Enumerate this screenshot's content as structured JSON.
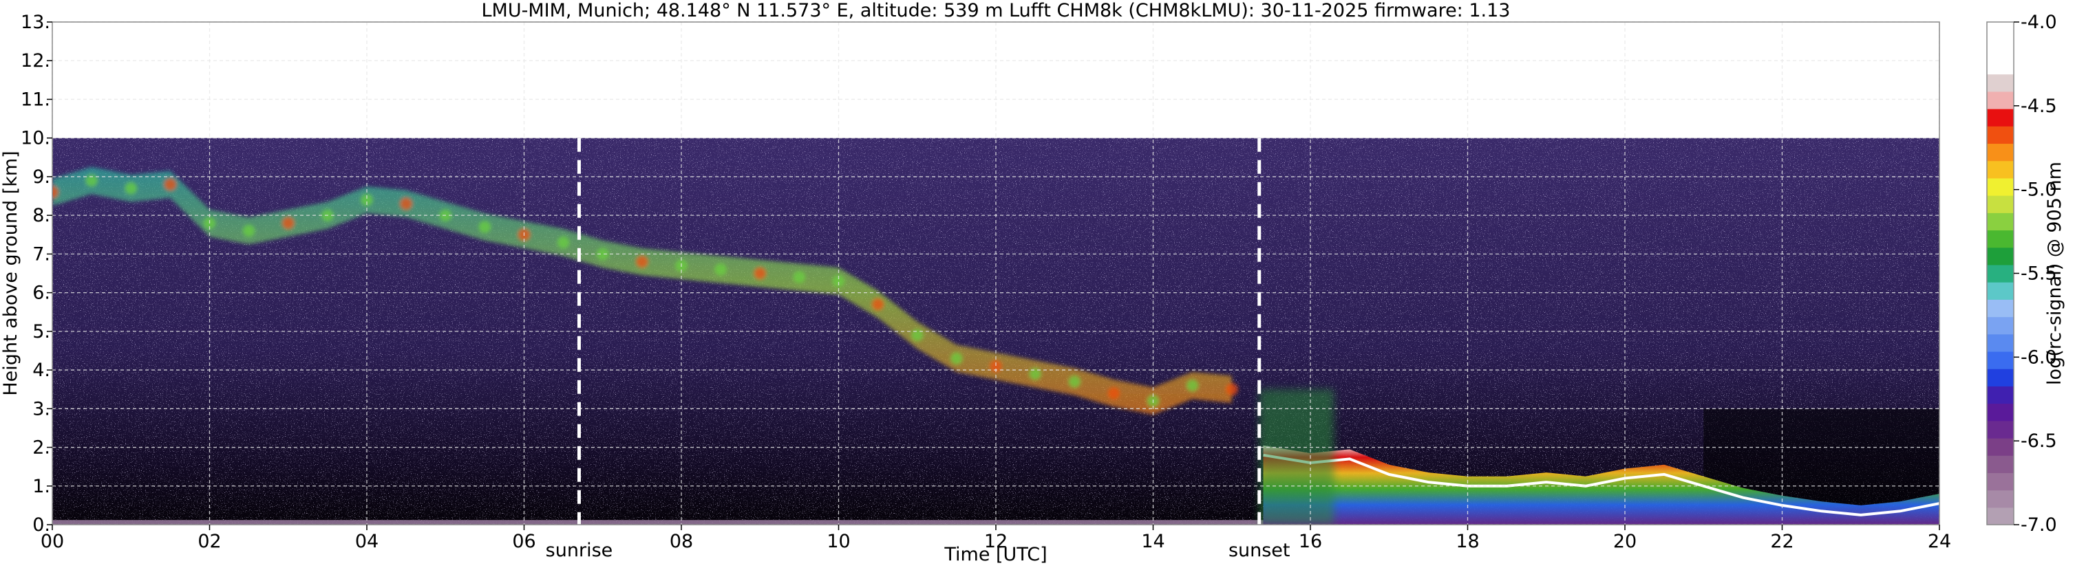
{
  "chart_data": {
    "type": "heatmap",
    "title": "LMU-MIM, Munich; 48.148° N 11.573° E, altitude: 539 m    Lufft CHM8k (CHM8kLMU): 30-11-2025    firmware: 1.13",
    "xlabel": "Time [UTC]",
    "ylabel": "Height above ground [km]",
    "xlim": [
      0,
      24
    ],
    "ylim": [
      0,
      13
    ],
    "x_ticks": [
      "00",
      "02",
      "04",
      "06",
      "08",
      "10",
      "12",
      "14",
      "16",
      "18",
      "20",
      "22",
      "24"
    ],
    "y_ticks": [
      "0.",
      "1.",
      "2.",
      "3.",
      "4.",
      "5.",
      "6.",
      "7.",
      "8.",
      "9.",
      "10.",
      "11.",
      "12.",
      "13."
    ],
    "grid": true,
    "data_top_km": 10,
    "events": [
      {
        "label": "sunrise",
        "time_h": 6.7
      },
      {
        "label": "sunset",
        "time_h": 15.35
      }
    ],
    "colorbar": {
      "label": "log(rc-signal) @ 905 nm",
      "range": [
        -7.0,
        -4.0
      ],
      "ticks": [
        "-7.0",
        "-6.5",
        "-6.0",
        "-5.5",
        "-5.0",
        "-4.5",
        "-4.0"
      ],
      "colors": [
        "#b3a0b3",
        "#a78aa7",
        "#9a729a",
        "#8a5a8e",
        "#7b3f87",
        "#6a2a90",
        "#5a1a9a",
        "#4020b0",
        "#2040e0",
        "#3a6cf0",
        "#5a8af0",
        "#7aa3f2",
        "#99bdf5",
        "#5cc8c8",
        "#28b080",
        "#1e9f3a",
        "#4ab830",
        "#8ad040",
        "#c8e040",
        "#f0f030",
        "#f8c020",
        "#f89018",
        "#f05010",
        "#e81010",
        "#f0b0b0",
        "#e0d0d0",
        "#ffffff"
      ]
    },
    "series": [
      {
        "name": "",
        "type": "cirrus-layer",
        "points": [
          [
            0.0,
            8.6
          ],
          [
            0.5,
            8.9
          ],
          [
            1.0,
            8.7
          ],
          [
            1.5,
            8.8
          ],
          [
            2.0,
            7.8
          ],
          [
            2.5,
            7.6
          ],
          [
            3.0,
            7.8
          ],
          [
            3.5,
            8.0
          ],
          [
            4.0,
            8.4
          ],
          [
            4.5,
            8.3
          ],
          [
            5.0,
            8.0
          ],
          [
            5.5,
            7.7
          ],
          [
            6.0,
            7.5
          ],
          [
            6.5,
            7.3
          ],
          [
            7.0,
            7.0
          ],
          [
            7.5,
            6.8
          ],
          [
            8.0,
            6.7
          ],
          [
            8.5,
            6.6
          ],
          [
            9.0,
            6.5
          ],
          [
            9.5,
            6.4
          ],
          [
            10.0,
            6.3
          ],
          [
            10.5,
            5.7
          ],
          [
            11.0,
            4.9
          ],
          [
            11.5,
            4.3
          ],
          [
            12.0,
            4.1
          ],
          [
            12.5,
            3.9
          ],
          [
            13.0,
            3.7
          ],
          [
            13.5,
            3.4
          ],
          [
            14.0,
            3.2
          ],
          [
            14.5,
            3.6
          ],
          [
            15.0,
            3.5
          ]
        ]
      },
      {
        "name": "",
        "type": "cloud-base",
        "points": [
          [
            15.4,
            1.8
          ],
          [
            16.0,
            1.6
          ],
          [
            16.5,
            1.7
          ],
          [
            17.0,
            1.3
          ],
          [
            17.5,
            1.1
          ],
          [
            18.0,
            1.0
          ],
          [
            18.5,
            1.0
          ],
          [
            19.0,
            1.1
          ],
          [
            19.5,
            1.0
          ],
          [
            20.0,
            1.2
          ],
          [
            20.5,
            1.3
          ],
          [
            21.0,
            1.0
          ],
          [
            21.5,
            0.7
          ],
          [
            22.0,
            0.5
          ],
          [
            22.5,
            0.35
          ],
          [
            23.0,
            0.25
          ],
          [
            23.5,
            0.35
          ],
          [
            24.0,
            0.55
          ]
        ]
      }
    ]
  }
}
